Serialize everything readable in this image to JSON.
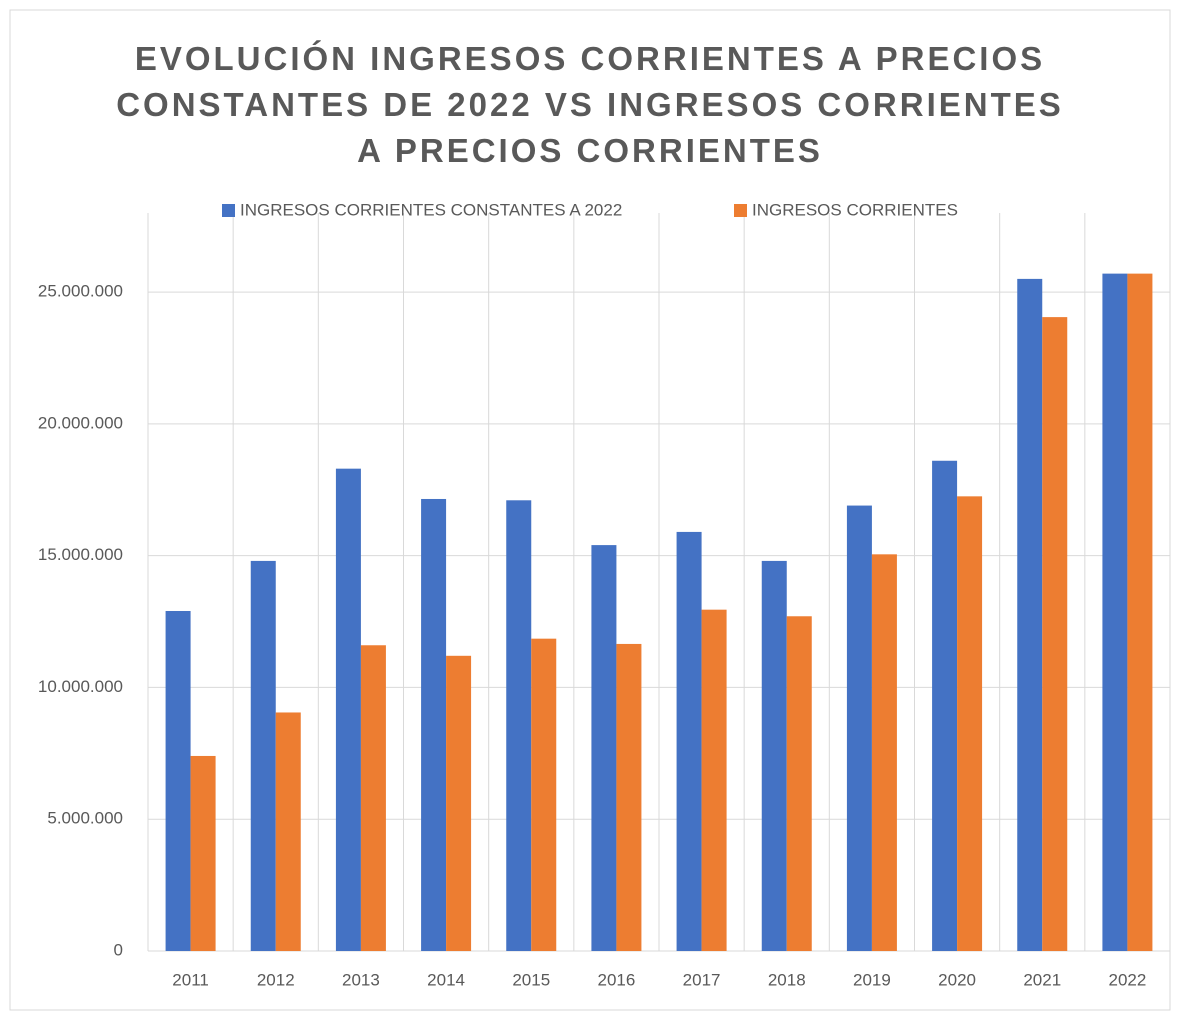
{
  "chart_data": {
    "type": "bar",
    "title": "EVOLUCIÓN INGRESOS CORRIENTES A PRECIOS CONSTANTES DE 2022 VS INGRESOS CORRIENTES A PRECIOS CORRIENTES",
    "categories": [
      "2011",
      "2012",
      "2013",
      "2014",
      "2015",
      "2016",
      "2017",
      "2018",
      "2019",
      "2020",
      "2021",
      "2022"
    ],
    "series": [
      {
        "name": "INGRESOS CORRIENTES CONSTANTES A 2022",
        "color": "#4472c4",
        "values": [
          12900000,
          14800000,
          18300000,
          17150000,
          17100000,
          15400000,
          15900000,
          14800000,
          16900000,
          18600000,
          25500000,
          25700000
        ]
      },
      {
        "name": "INGRESOS CORRIENTES",
        "color": "#ed7d31",
        "values": [
          7400000,
          9050000,
          11600000,
          11200000,
          11850000,
          11650000,
          12950000,
          12700000,
          15050000,
          17250000,
          24050000,
          25700000
        ]
      }
    ],
    "ylim": [
      0,
      28000000
    ],
    "yticks": [
      0,
      {
        "value": 5000000,
        "label": "5.000.000"
      },
      {
        "value": 10000000,
        "label": "10.000.000"
      },
      {
        "value": 15000000,
        "label": "15.000.000"
      },
      {
        "value": 20000000,
        "label": "20.000.000"
      },
      {
        "value": 25000000,
        "label": "25.000.000"
      }
    ],
    "grid": true
  }
}
